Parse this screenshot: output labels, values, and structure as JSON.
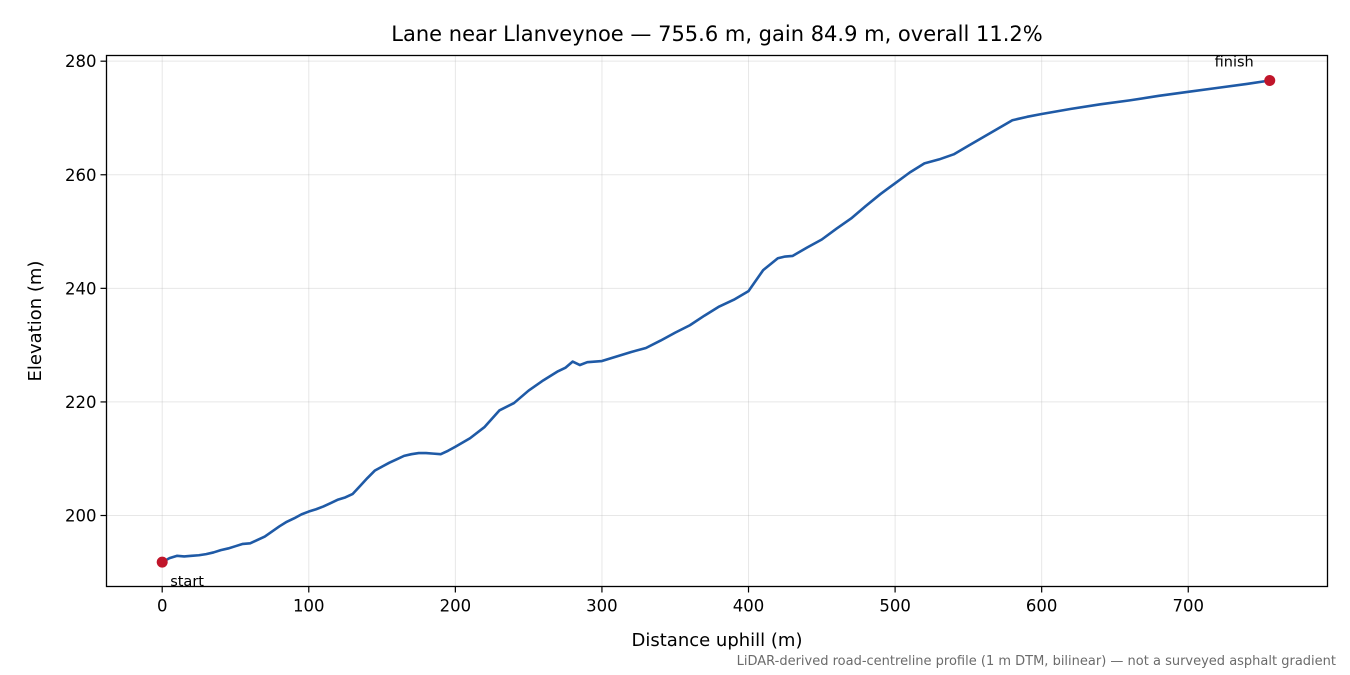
{
  "chart_data": {
    "type": "line",
    "title": "Lane near Llanveynoe — 755.6 m, gain 84.9 m, overall 11.2%",
    "xlabel": "Distance uphill (m)",
    "ylabel": "Elevation (m)",
    "xlim": [
      -38,
      795
    ],
    "ylim": [
      187.5,
      281.0
    ],
    "xticks": [
      0,
      100,
      200,
      300,
      400,
      500,
      600,
      700
    ],
    "yticks": [
      200,
      220,
      240,
      260,
      280
    ],
    "grid": true,
    "line_color": "#1f5aa6",
    "marker_color": "#c0152a",
    "series": [
      {
        "name": "",
        "x": [
          0,
          5,
          10,
          15,
          20,
          25,
          30,
          35,
          40,
          45,
          50,
          55,
          60,
          65,
          70,
          75,
          80,
          85,
          90,
          95,
          100,
          105,
          110,
          115,
          120,
          125,
          130,
          135,
          140,
          145,
          150,
          155,
          160,
          165,
          170,
          175,
          180,
          185,
          190,
          195,
          200,
          210,
          220,
          230,
          240,
          250,
          260,
          270,
          275,
          280,
          285,
          290,
          300,
          310,
          320,
          330,
          340,
          350,
          360,
          370,
          380,
          390,
          400,
          410,
          420,
          425,
          430,
          440,
          450,
          460,
          470,
          480,
          490,
          500,
          510,
          520,
          530,
          540,
          550,
          560,
          570,
          580,
          590,
          600,
          620,
          640,
          660,
          680,
          700,
          720,
          740,
          755.6
        ],
        "y": [
          191.8,
          192.5,
          192.9,
          192.8,
          192.9,
          193.0,
          193.2,
          193.5,
          193.9,
          194.2,
          194.6,
          195.0,
          195.1,
          195.7,
          196.3,
          197.2,
          198.1,
          198.9,
          199.5,
          200.2,
          200.7,
          201.1,
          201.6,
          202.2,
          202.8,
          203.2,
          203.8,
          205.2,
          206.6,
          207.9,
          208.6,
          209.3,
          209.9,
          210.5,
          210.8,
          211.0,
          211.0,
          210.9,
          210.8,
          211.4,
          212.1,
          213.6,
          215.6,
          218.5,
          219.8,
          222.0,
          223.8,
          225.4,
          226.0,
          227.1,
          226.5,
          227.0,
          227.2,
          228.0,
          228.8,
          229.5,
          230.8,
          232.2,
          233.5,
          235.2,
          236.8,
          238.0,
          239.5,
          243.2,
          245.3,
          245.6,
          245.7,
          247.2,
          248.6,
          250.5,
          252.3,
          254.5,
          256.6,
          258.5,
          260.4,
          262.0,
          262.7,
          263.6,
          265.1,
          266.6,
          268.1,
          269.6,
          270.2,
          270.7,
          271.6,
          272.4,
          273.1,
          273.9,
          274.6,
          275.3,
          276.0,
          276.6
        ]
      }
    ],
    "annotations": [
      {
        "text": "start",
        "x": 0,
        "y": 191.8
      },
      {
        "text": "finish",
        "x": 755.6,
        "y": 276.6
      }
    ],
    "footnote": "LiDAR-derived road-centreline profile (1 m DTM, bilinear) — not a surveyed asphalt gradient"
  }
}
